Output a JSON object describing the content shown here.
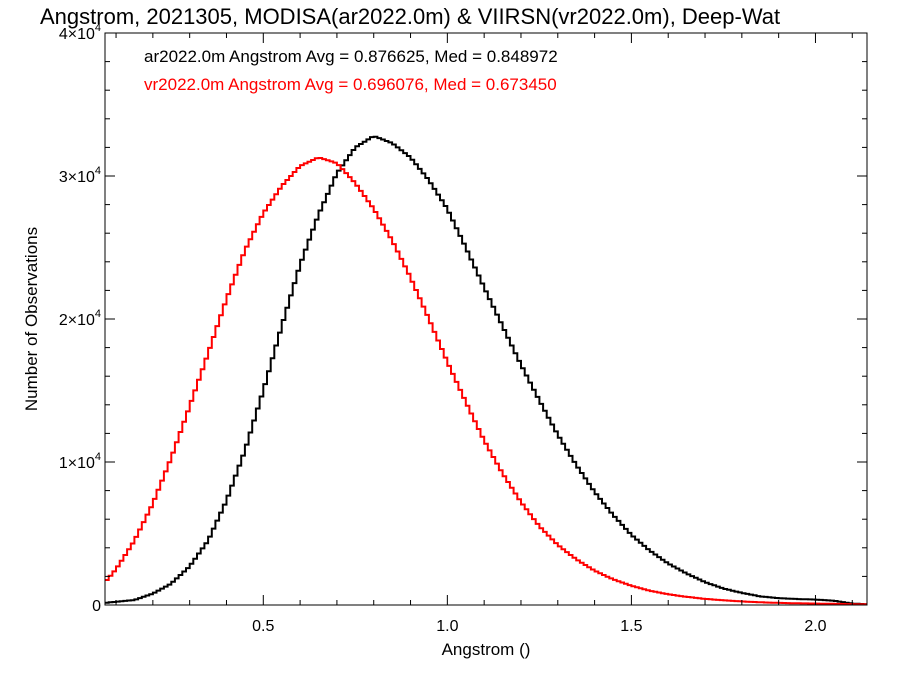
{
  "chart_data": {
    "type": "line",
    "title": "Angstrom, 2021305, MODISA(ar2022.0m) & VIIRSN(vr2022.0m), Deep-Wat",
    "xlabel": "Angstrom ()",
    "ylabel": "Number of Observations",
    "xlim": [
      0.07,
      2.14
    ],
    "ylim": [
      0,
      40000
    ],
    "x_ticks": [
      0.5,
      1.0,
      1.5,
      2.0
    ],
    "x_tick_labels": [
      "0.5",
      "1.0",
      "1.5",
      "2.0"
    ],
    "y_ticks": [
      0,
      10000,
      20000,
      30000,
      40000
    ],
    "y_tick_labels": [
      {
        "mantissa": "0",
        "base": "",
        "exp": ""
      },
      {
        "mantissa": "1",
        "base": "×10",
        "exp": "4"
      },
      {
        "mantissa": "2",
        "base": "×10",
        "exp": "4"
      },
      {
        "mantissa": "3",
        "base": "×10",
        "exp": "4"
      },
      {
        "mantissa": "4",
        "base": "×10",
        "exp": "4"
      }
    ],
    "grid": false,
    "legend_position": "top-left",
    "series": [
      {
        "name": "ar2022.0m",
        "legend_text": "ar2022.0m Angstrom Avg = 0.876625, Med = 0.848972",
        "color": "#000000",
        "points": [
          [
            0.07,
            150
          ],
          [
            0.15,
            350
          ],
          [
            0.2,
            800
          ],
          [
            0.25,
            1500
          ],
          [
            0.3,
            2700
          ],
          [
            0.35,
            4500
          ],
          [
            0.4,
            7300
          ],
          [
            0.45,
            10800
          ],
          [
            0.5,
            15000
          ],
          [
            0.55,
            19500
          ],
          [
            0.6,
            23800
          ],
          [
            0.65,
            27300
          ],
          [
            0.7,
            30200
          ],
          [
            0.75,
            32000
          ],
          [
            0.8,
            32800
          ],
          [
            0.85,
            32300
          ],
          [
            0.9,
            31300
          ],
          [
            0.95,
            29700
          ],
          [
            1.0,
            27700
          ],
          [
            1.05,
            25000
          ],
          [
            1.1,
            22200
          ],
          [
            1.15,
            19500
          ],
          [
            1.2,
            16800
          ],
          [
            1.25,
            14300
          ],
          [
            1.3,
            11900
          ],
          [
            1.35,
            9800
          ],
          [
            1.4,
            7900
          ],
          [
            1.45,
            6300
          ],
          [
            1.5,
            4900
          ],
          [
            1.55,
            3800
          ],
          [
            1.6,
            2900
          ],
          [
            1.65,
            2200
          ],
          [
            1.7,
            1600
          ],
          [
            1.75,
            1150
          ],
          [
            1.8,
            850
          ],
          [
            1.85,
            600
          ],
          [
            1.9,
            480
          ],
          [
            1.95,
            420
          ],
          [
            2.0,
            380
          ],
          [
            2.05,
            300
          ],
          [
            2.1,
            100
          ],
          [
            2.14,
            50
          ]
        ]
      },
      {
        "name": "vr2022.0m",
        "legend_text": "vr2022.0m Angstrom Avg = 0.696076, Med = 0.673450",
        "color": "#ff0000",
        "points": [
          [
            0.07,
            1600
          ],
          [
            0.1,
            2500
          ],
          [
            0.15,
            4500
          ],
          [
            0.2,
            7100
          ],
          [
            0.25,
            10300
          ],
          [
            0.3,
            13900
          ],
          [
            0.35,
            17600
          ],
          [
            0.4,
            21400
          ],
          [
            0.45,
            24800
          ],
          [
            0.5,
            27400
          ],
          [
            0.55,
            29300
          ],
          [
            0.6,
            30700
          ],
          [
            0.65,
            31300
          ],
          [
            0.7,
            30900
          ],
          [
            0.75,
            29500
          ],
          [
            0.8,
            27700
          ],
          [
            0.85,
            25500
          ],
          [
            0.9,
            22900
          ],
          [
            0.95,
            20000
          ],
          [
            1.0,
            17000
          ],
          [
            1.05,
            14200
          ],
          [
            1.1,
            11500
          ],
          [
            1.15,
            9200
          ],
          [
            1.2,
            7200
          ],
          [
            1.25,
            5500
          ],
          [
            1.3,
            4200
          ],
          [
            1.35,
            3200
          ],
          [
            1.4,
            2400
          ],
          [
            1.45,
            1800
          ],
          [
            1.5,
            1350
          ],
          [
            1.55,
            1000
          ],
          [
            1.6,
            750
          ],
          [
            1.65,
            570
          ],
          [
            1.7,
            430
          ],
          [
            1.75,
            330
          ],
          [
            1.8,
            250
          ],
          [
            1.85,
            190
          ],
          [
            1.9,
            150
          ],
          [
            1.95,
            120
          ],
          [
            2.0,
            100
          ],
          [
            2.05,
            80
          ],
          [
            2.1,
            60
          ],
          [
            2.14,
            50
          ]
        ]
      }
    ]
  }
}
